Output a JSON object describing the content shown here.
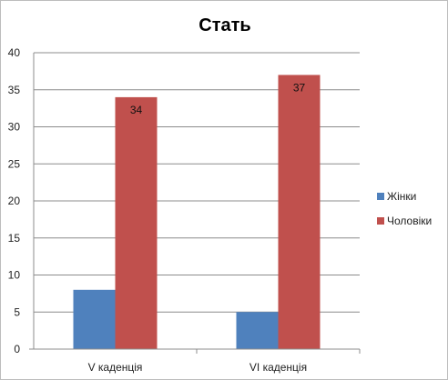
{
  "chart_data": {
    "type": "bar",
    "title": "Стать",
    "categories": [
      "V каденція",
      "VI каденція"
    ],
    "series": [
      {
        "name": "Жінки",
        "values": [
          8,
          5
        ],
        "color": "#4F81BD",
        "data_labels": [
          null,
          null
        ]
      },
      {
        "name": "Чоловіки",
        "values": [
          34,
          37
        ],
        "color": "#C0504D",
        "data_labels": [
          "34",
          "37"
        ]
      }
    ],
    "ylim": [
      0,
      40
    ],
    "yticks": [
      0,
      5,
      10,
      15,
      20,
      25,
      30,
      35,
      40
    ],
    "grid": true,
    "legend_position": "right"
  }
}
